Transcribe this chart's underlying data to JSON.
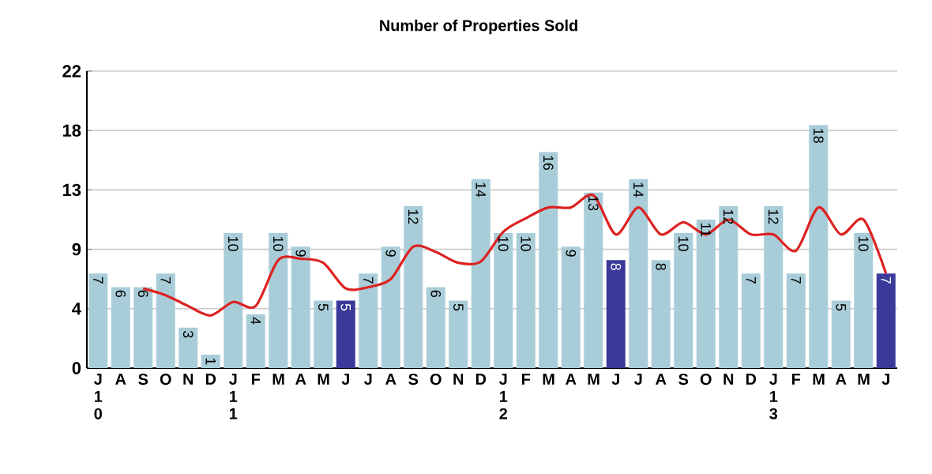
{
  "chart_data": {
    "type": "bar",
    "title": "Number of Properties Sold",
    "categories": [
      "J 1 0",
      "A",
      "S",
      "O",
      "N",
      "D",
      "J 1 1",
      "F",
      "M",
      "A",
      "M",
      "J",
      "J",
      "A",
      "S",
      "O",
      "N",
      "D",
      "J 1 2",
      "F",
      "M",
      "A",
      "M",
      "J",
      "J",
      "A",
      "S",
      "O",
      "N",
      "D",
      "J 1 3",
      "F",
      "M",
      "A",
      "M",
      "J"
    ],
    "ylim": [
      0,
      22
    ],
    "yticks": [
      0,
      {
        "value": 4.4,
        "label": "4"
      },
      {
        "value": 8.8,
        "label": "9"
      },
      {
        "value": 13.2,
        "label": "13"
      },
      {
        "value": 17.6,
        "label": "18"
      },
      22
    ],
    "grid": "y",
    "series": [
      {
        "values": [
          7,
          6,
          6,
          7,
          3,
          1,
          10,
          4,
          10,
          9,
          5,
          5,
          7,
          9,
          12,
          6,
          5,
          14,
          10,
          10,
          16,
          9,
          13,
          8,
          14,
          8,
          10,
          11,
          12,
          7,
          12,
          7,
          18,
          5,
          10,
          7
        ],
        "value_labels": [
          "7",
          "6",
          "6",
          "7",
          "3",
          "1",
          "10",
          "4",
          "10",
          "9",
          "5",
          "5",
          "7",
          "9",
          "12",
          "6",
          "5",
          "14",
          "10",
          "10",
          "16",
          "9",
          "13",
          "8",
          "14",
          "8",
          "10",
          "11",
          "12",
          "7",
          "12",
          "7",
          "18",
          "5",
          "10",
          "7"
        ],
        "colors": [
          "#a9cdd8",
          "#a9cdd8",
          "#a9cdd8",
          "#a9cdd8",
          "#a9cdd8",
          "#a9cdd8",
          "#a9cdd8",
          "#a9cdd8",
          "#a9cdd8",
          "#a9cdd8",
          "#a9cdd8",
          "#3a3a9a",
          "#a9cdd8",
          "#a9cdd8",
          "#a9cdd8",
          "#a9cdd8",
          "#a9cdd8",
          "#a9cdd8",
          "#a9cdd8",
          "#a9cdd8",
          "#a9cdd8",
          "#a9cdd8",
          "#a9cdd8",
          "#3a3a9a",
          "#a9cdd8",
          "#a9cdd8",
          "#a9cdd8",
          "#a9cdd8",
          "#a9cdd8",
          "#a9cdd8",
          "#a9cdd8",
          "#a9cdd8",
          "#a9cdd8",
          "#a9cdd8",
          "#a9cdd8",
          "#3a3a9a"
        ]
      },
      {
        "type": "line",
        "color": "#dd2222",
        "marker": "none",
        "line_style": "solid",
        "values": [
          null,
          null,
          5.9,
          5.4,
          4.6,
          3.9,
          4.9,
          4.6,
          8.0,
          8.1,
          7.8,
          5.9,
          6.0,
          6.6,
          9.0,
          8.6,
          7.8,
          7.9,
          10.1,
          11.1,
          11.9,
          11.9,
          12.8,
          9.9,
          11.9,
          9.9,
          10.8,
          9.9,
          11.0,
          9.9,
          9.9,
          8.7,
          11.9,
          9.9,
          11.0,
          7.0
        ]
      }
    ]
  }
}
